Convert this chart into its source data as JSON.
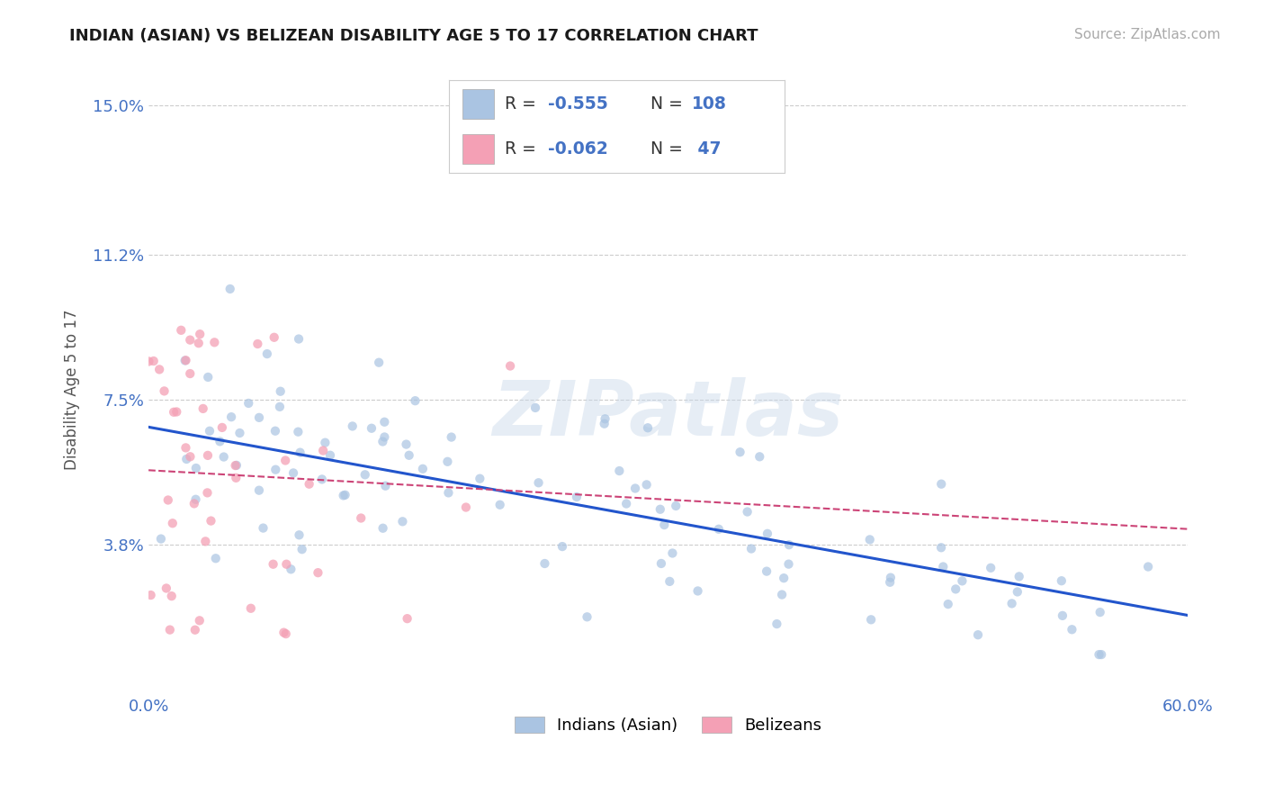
{
  "title": "INDIAN (ASIAN) VS BELIZEAN DISABILITY AGE 5 TO 17 CORRELATION CHART",
  "source_text": "Source: ZipAtlas.com",
  "ylabel": "Disability Age 5 to 17",
  "xlim": [
    0.0,
    0.6
  ],
  "ylim": [
    0.0,
    0.155
  ],
  "ytick_labels": [
    "",
    "3.8%",
    "",
    "7.5%",
    "",
    "11.2%",
    "",
    "15.0%"
  ],
  "ytick_values": [
    0.0,
    0.038,
    0.057,
    0.075,
    0.094,
    0.112,
    0.1335,
    0.15
  ],
  "xtick_labels": [
    "0.0%",
    "",
    "",
    "",
    "",
    "",
    "60.0%"
  ],
  "xtick_values": [
    0.0,
    0.1,
    0.2,
    0.3,
    0.4,
    0.5,
    0.6
  ],
  "color_indian": "#aac4e2",
  "color_belizean": "#f4a0b5",
  "color_indian_line": "#2255cc",
  "color_belizean_line": "#cc4477",
  "color_axis_labels": "#4472c4",
  "background_color": "#ffffff",
  "grid_color": "#cccccc",
  "watermark_text": "ZIPatlas",
  "indian_R": -0.555,
  "indian_N": 108,
  "belizean_R": -0.062,
  "belizean_N": 47,
  "indian_line_x": [
    0.0,
    0.6
  ],
  "indian_line_y": [
    0.068,
    0.02
  ],
  "belizean_line_x": [
    0.0,
    0.6
  ],
  "belizean_line_y": [
    0.057,
    0.042
  ]
}
